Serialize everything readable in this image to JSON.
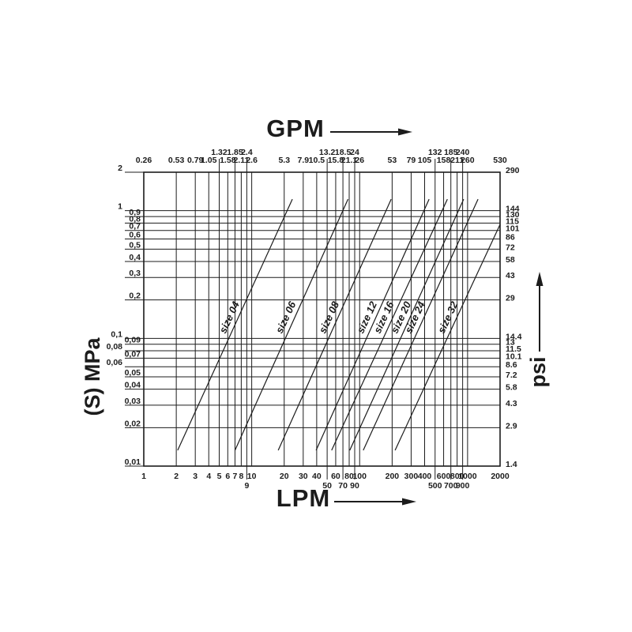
{
  "colors": {
    "ink": "#1c1c1c",
    "grid": "#2e2e2e",
    "background": "#ffffff"
  },
  "titles": {
    "top_axis": "GPM",
    "bottom_axis": "LPM",
    "left_axis": "(S) MPa",
    "right_axis": "psi"
  },
  "icons": {
    "top_axis_arrow": "arrow-right-icon",
    "bottom_axis_arrow": "arrow-right-icon",
    "right_axis_arrow": "arrow-up-icon"
  },
  "chart_data": {
    "type": "line",
    "scale": "log-log",
    "grid": true,
    "x_bottom": {
      "label": "LPM",
      "range": [
        1,
        2000
      ],
      "ticks": [
        {
          "v": 1,
          "label": "1"
        },
        {
          "v": 2,
          "label": "2"
        },
        {
          "v": 3,
          "label": "3"
        },
        {
          "v": 4,
          "label": "4"
        },
        {
          "v": 5,
          "label": "5"
        },
        {
          "v": 6,
          "label": "6"
        },
        {
          "v": 7,
          "label": "7"
        },
        {
          "v": 8,
          "label": "8"
        },
        {
          "v": 9,
          "label": "9",
          "lowered": true
        },
        {
          "v": 10,
          "label": "10"
        },
        {
          "v": 20,
          "label": "20"
        },
        {
          "v": 30,
          "label": "30"
        },
        {
          "v": 40,
          "label": "40"
        },
        {
          "v": 50,
          "label": "50",
          "lowered": true
        },
        {
          "v": 60,
          "label": "60"
        },
        {
          "v": 70,
          "label": "70",
          "lowered": true
        },
        {
          "v": 80,
          "label": "80"
        },
        {
          "v": 90,
          "label": "90",
          "lowered": true
        },
        {
          "v": 100,
          "label": "100"
        },
        {
          "v": 200,
          "label": "200"
        },
        {
          "v": 300,
          "label": "300"
        },
        {
          "v": 400,
          "label": "400"
        },
        {
          "v": 500,
          "label": "500",
          "lowered": true
        },
        {
          "v": 600,
          "label": "600"
        },
        {
          "v": 700,
          "label": "700",
          "lowered": true
        },
        {
          "v": 800,
          "label": "800"
        },
        {
          "v": 900,
          "label": "900",
          "lowered": true
        },
        {
          "v": 1000,
          "label": "1000"
        },
        {
          "v": 2000,
          "label": "2000"
        }
      ]
    },
    "x_top": {
      "label": "GPM",
      "ticks": [
        {
          "v": 1,
          "label": "0.26"
        },
        {
          "v": 2,
          "label": "0.53"
        },
        {
          "v": 3,
          "label": "0.79"
        },
        {
          "v": 4,
          "label": "1.05"
        },
        {
          "v": 5,
          "label": "1.32",
          "raised": true
        },
        {
          "v": 6,
          "label": "1.58"
        },
        {
          "v": 7,
          "label": "1.85",
          "raised": true
        },
        {
          "v": 8,
          "label": "2.11"
        },
        {
          "v": 9,
          "label": "2.4",
          "raised": true
        },
        {
          "v": 10,
          "label": "2.6"
        },
        {
          "v": 20,
          "label": "5.3"
        },
        {
          "v": 30,
          "label": "7.9"
        },
        {
          "v": 40,
          "label": "10.5"
        },
        {
          "v": 50,
          "label": "13.2",
          "raised": true
        },
        {
          "v": 60,
          "label": "15.8"
        },
        {
          "v": 70,
          "label": "18.5",
          "raised": true
        },
        {
          "v": 80,
          "label": "21.1"
        },
        {
          "v": 90,
          "label": "24",
          "raised": true
        },
        {
          "v": 100,
          "label": "26"
        },
        {
          "v": 200,
          "label": "53"
        },
        {
          "v": 300,
          "label": "79"
        },
        {
          "v": 400,
          "label": "105"
        },
        {
          "v": 500,
          "label": "132",
          "raised": true
        },
        {
          "v": 600,
          "label": "158"
        },
        {
          "v": 700,
          "label": "185",
          "raised": true
        },
        {
          "v": 800,
          "label": "211"
        },
        {
          "v": 900,
          "label": "240",
          "raised": true
        },
        {
          "v": 1000,
          "label": "260"
        },
        {
          "v": 2000,
          "label": "530"
        }
      ]
    },
    "y_left": {
      "label": "(S) MPa",
      "range": [
        0.01,
        2
      ],
      "ticks": [
        {
          "v": 2,
          "label": "2",
          "staggered": true
        },
        {
          "v": 1,
          "label": "1",
          "staggered": true
        },
        {
          "v": 0.9,
          "label": "0,9"
        },
        {
          "v": 0.8,
          "label": "0,8"
        },
        {
          "v": 0.7,
          "label": "0,7"
        },
        {
          "v": 0.6,
          "label": "0,6"
        },
        {
          "v": 0.5,
          "label": "0,5"
        },
        {
          "v": 0.4,
          "label": "0,4"
        },
        {
          "v": 0.3,
          "label": "0,3"
        },
        {
          "v": 0.2,
          "label": "0,2"
        },
        {
          "v": 0.1,
          "label": "0,1",
          "staggered": true
        },
        {
          "v": 0.09,
          "label": "0,09"
        },
        {
          "v": 0.08,
          "label": "0,08",
          "staggered": true
        },
        {
          "v": 0.07,
          "label": "0,07"
        },
        {
          "v": 0.06,
          "label": "0,06",
          "staggered": true
        },
        {
          "v": 0.05,
          "label": "0,05"
        },
        {
          "v": 0.04,
          "label": "0,04"
        },
        {
          "v": 0.03,
          "label": "0,03"
        },
        {
          "v": 0.02,
          "label": "0,02"
        },
        {
          "v": 0.01,
          "label": "0,01"
        }
      ]
    },
    "y_right": {
      "label": "psi",
      "ticks": [
        {
          "v": 2,
          "label": "290"
        },
        {
          "v": 1,
          "label": "144"
        },
        {
          "v": 0.9,
          "label": "130"
        },
        {
          "v": 0.8,
          "label": "115"
        },
        {
          "v": 0.7,
          "label": "101"
        },
        {
          "v": 0.6,
          "label": "86"
        },
        {
          "v": 0.5,
          "label": "72"
        },
        {
          "v": 0.4,
          "label": "58"
        },
        {
          "v": 0.3,
          "label": "43"
        },
        {
          "v": 0.2,
          "label": "29"
        },
        {
          "v": 0.1,
          "label": "14.4"
        },
        {
          "v": 0.09,
          "label": "13"
        },
        {
          "v": 0.08,
          "label": "11.5"
        },
        {
          "v": 0.07,
          "label": "10.1"
        },
        {
          "v": 0.06,
          "label": "8.6"
        },
        {
          "v": 0.05,
          "label": "7.2"
        },
        {
          "v": 0.04,
          "label": "5.8"
        },
        {
          "v": 0.03,
          "label": "4.3"
        },
        {
          "v": 0.02,
          "label": "2.9"
        },
        {
          "v": 0.01,
          "label": "1.4"
        }
      ]
    },
    "series": [
      {
        "name": "size 04",
        "points": [
          [
            2.06,
            0.0133
          ],
          [
            23.8,
            1.23
          ]
        ]
      },
      {
        "name": "size 06",
        "points": [
          [
            7.0,
            0.0133
          ],
          [
            78,
            1.23
          ]
        ]
      },
      {
        "name": "size 08",
        "points": [
          [
            17.6,
            0.0133
          ],
          [
            196,
            1.23
          ]
        ]
      },
      {
        "name": "size 12",
        "points": [
          [
            39.5,
            0.0133
          ],
          [
            440,
            1.23
          ]
        ]
      },
      {
        "name": "size 16",
        "points": [
          [
            55,
            0.0133
          ],
          [
            650,
            1.23
          ]
        ]
      },
      {
        "name": "size 20",
        "points": [
          [
            81,
            0.0133
          ],
          [
            920,
            1.23
          ]
        ]
      },
      {
        "name": "size 24",
        "points": [
          [
            108,
            0.0133
          ],
          [
            1250,
            1.23
          ]
        ]
      },
      {
        "name": "size 32",
        "points": [
          [
            213,
            0.0133
          ],
          [
            2000,
            0.78
          ]
        ]
      }
    ]
  }
}
